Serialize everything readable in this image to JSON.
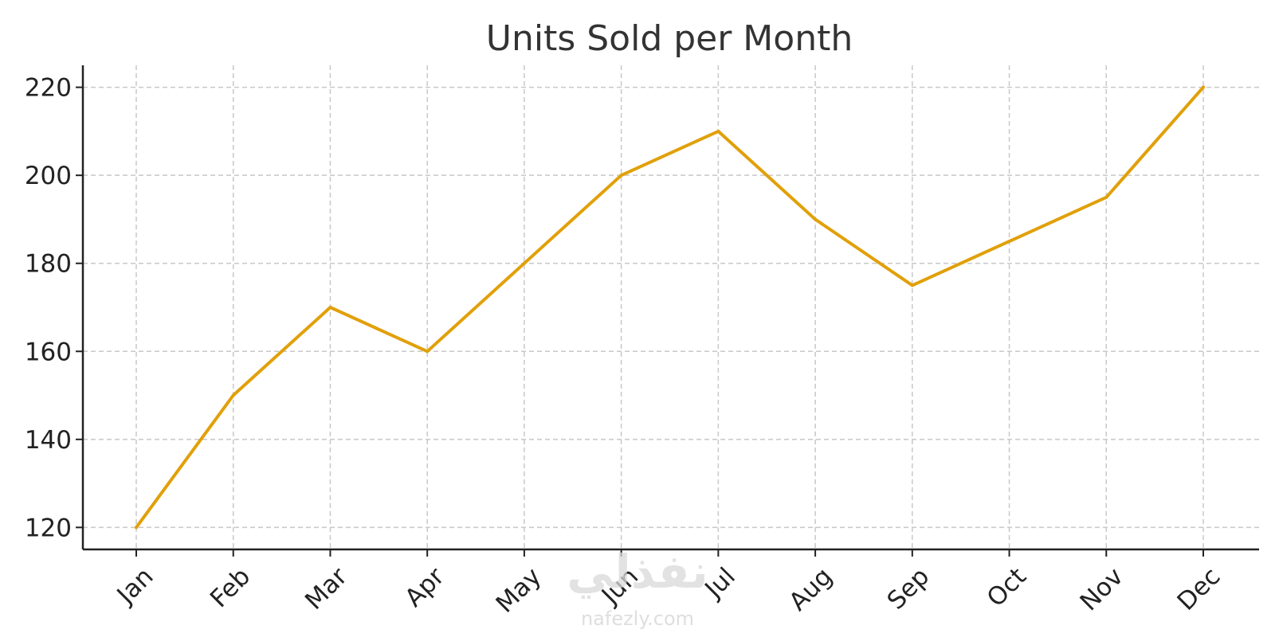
{
  "chart_data": {
    "type": "line",
    "title": "Units Sold per Month",
    "xlabel": "",
    "ylabel": "",
    "categories": [
      "Jan",
      "Feb",
      "Mar",
      "Apr",
      "May",
      "Jun",
      "Jul",
      "Aug",
      "Sep",
      "Oct",
      "Nov",
      "Dec"
    ],
    "values": [
      120,
      150,
      170,
      160,
      180,
      200,
      210,
      190,
      175,
      185,
      195,
      220
    ],
    "ylim": [
      115,
      225
    ],
    "yticks": [
      120,
      140,
      160,
      180,
      200,
      220
    ],
    "grid": true,
    "legend": "none",
    "line_color": "#E1A00A"
  },
  "watermark": {
    "arabic": "نفذلي",
    "url": "nafezly.com"
  }
}
